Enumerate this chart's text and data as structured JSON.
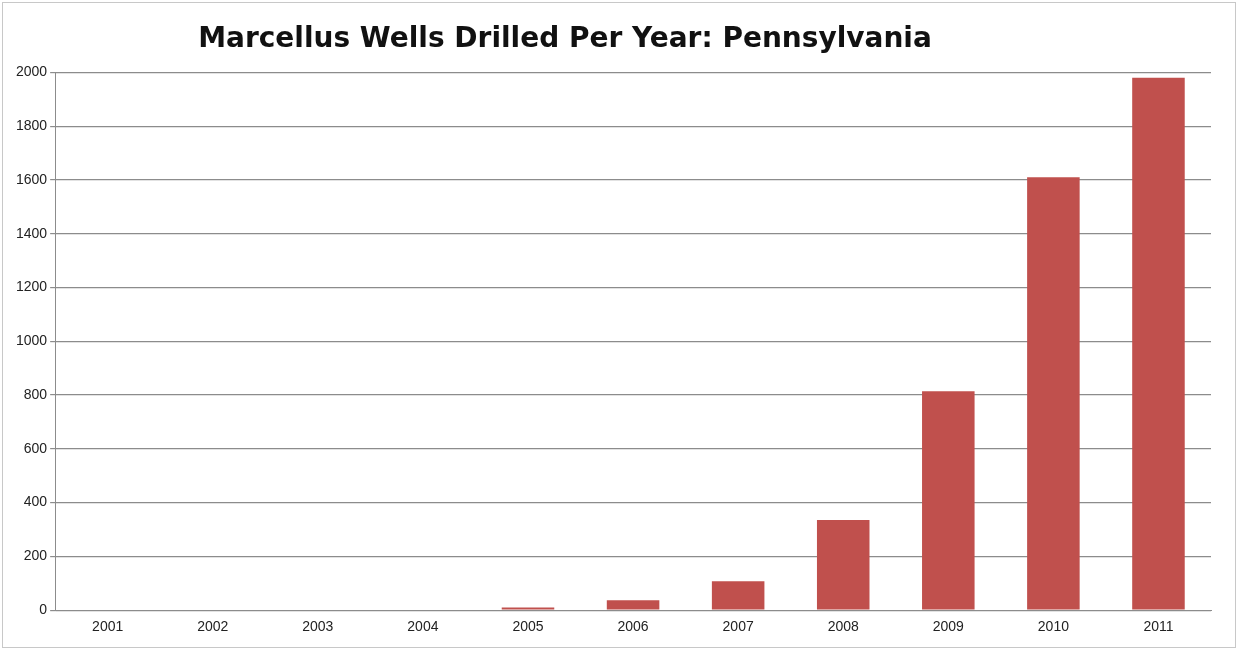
{
  "chart_data": {
    "type": "bar",
    "title": "Marcellus Wells Drilled Per Year: Pennsylvania",
    "categories": [
      "2001",
      "2002",
      "2003",
      "2004",
      "2005",
      "2006",
      "2007",
      "2008",
      "2009",
      "2010",
      "2011"
    ],
    "values": [
      0,
      0,
      0,
      0,
      10,
      37,
      108,
      335,
      814,
      1610,
      1980
    ],
    "color": "#c0504d",
    "ylim": [
      0,
      2000
    ],
    "yticks": [
      0,
      200,
      400,
      600,
      800,
      1000,
      1200,
      1400,
      1600,
      1800,
      2000
    ],
    "grid": "y",
    "legend": false
  }
}
